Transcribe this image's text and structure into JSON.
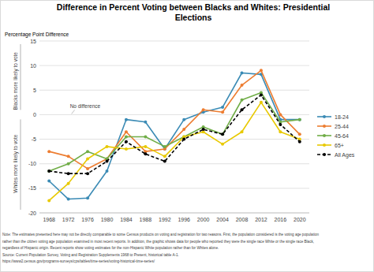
{
  "chart_data": {
    "type": "line",
    "title": [
      "Difference in Percent Voting between Blacks and Whites: Presidential",
      "Elections"
    ],
    "y_label": "Percentage Point Difference",
    "annotations": [
      "Blacks more likely to vote",
      "Whites more likely to vote",
      "No difference"
    ],
    "note": [
      "Note: The estimates presented here may not be directly comparable to some Census products on voting and registration for two reasons. First, the population considered is the voting age population",
      "rather than the citizen voting age population examined in most recent reports. In addition, the graphic shows data for people who reported they were the single race White or the single race Black,",
      "regardless of Hispanic origin. Recent reports show voting estimates for the non-Hispanic White population rather than for Whites alone.",
      "Source: Current Population Survey, Voting and Registration Supplements 1968 to Present, historical table A-1.",
      "https://www2.census.gov/programs-surveys/cps/tables/time-series/voting-historical-time-series/"
    ],
    "categories": [
      "1968",
      "1972",
      "1976",
      "1980",
      "1984",
      "1988",
      "1992",
      "1996",
      "2000",
      "2004",
      "2008",
      "2012",
      "2016",
      "2020"
    ],
    "series": [
      {
        "name": "18-24",
        "color": "#3b8bb5",
        "marker": "circle",
        "line_style": "solid",
        "values": [
          -13.5,
          -17.2,
          -17,
          -11.5,
          -1,
          -1.5,
          -7,
          -1,
          0.5,
          1.5,
          8.5,
          8.2,
          -1,
          -1
        ]
      },
      {
        "name": "25-44",
        "color": "#ed7d31",
        "marker": "circle",
        "line_style": "solid",
        "values": [
          -7.5,
          -8.5,
          -11,
          -9,
          -3.5,
          -7.5,
          -7,
          -3,
          1,
          0.5,
          6,
          9,
          0,
          -4
        ]
      },
      {
        "name": "45-64",
        "color": "#70ad47",
        "marker": "circle",
        "line_style": "solid",
        "values": [
          -11.5,
          -10,
          -7.5,
          -9,
          -4.5,
          -4.5,
          -6.5,
          -4.5,
          -2.5,
          -4,
          3,
          4.5,
          -1.5,
          -1
        ]
      },
      {
        "name": "65+",
        "color": "#e8c900",
        "marker": "circle",
        "line_style": "solid",
        "values": [
          -17.5,
          -14,
          -9,
          -6.5,
          -7,
          -6.5,
          -8.5,
          -4.5,
          -3.5,
          -6,
          -3.5,
          2.5,
          -3.5,
          -5
        ]
      },
      {
        "name": "All Ages",
        "color": "#000000",
        "marker": "circle",
        "line_style": "dashed",
        "values": [
          -11.5,
          -12,
          -12,
          -9.5,
          -5.5,
          -8,
          -9.5,
          -5,
          -3,
          -4,
          1,
          4,
          -2,
          -5.5
        ]
      }
    ],
    "ylim": [
      -20,
      15
    ],
    "yticks": [
      -20,
      -15,
      -10,
      -5,
      0,
      5,
      10,
      15
    ],
    "grid": true,
    "legend": "right"
  }
}
